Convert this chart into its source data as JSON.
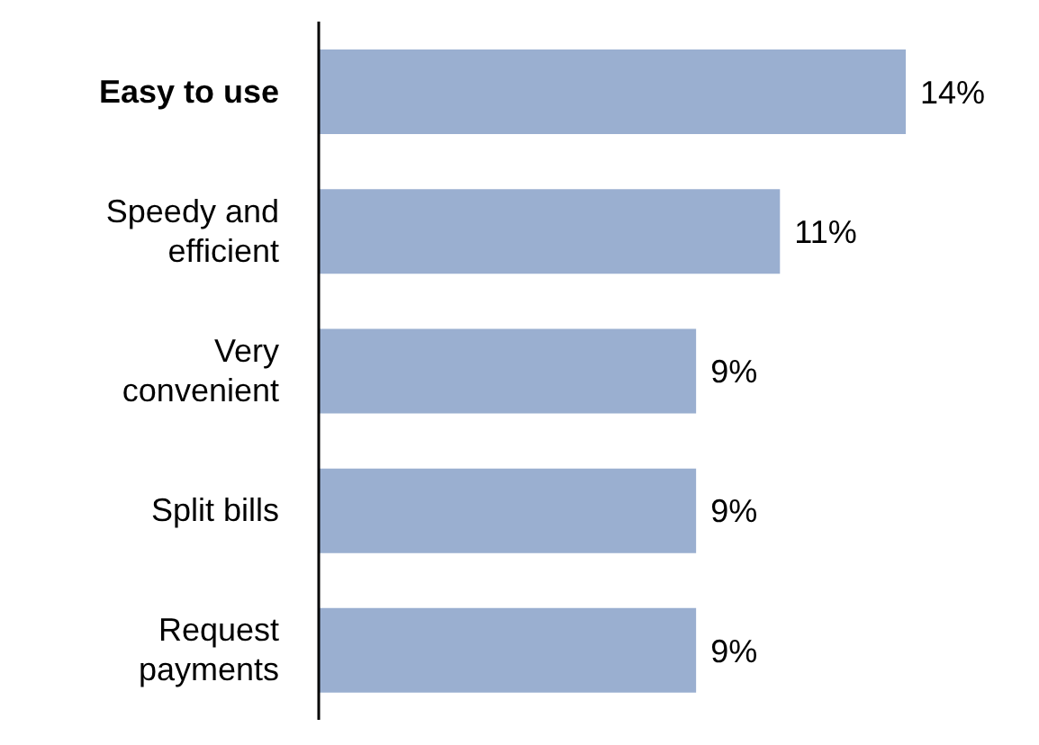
{
  "chart_data": {
    "type": "bar",
    "orientation": "horizontal",
    "categories": [
      "Easy to use",
      "Speedy and efficient",
      "Very convenient",
      "Split bills",
      "Request payments"
    ],
    "values": [
      14,
      11,
      9,
      9,
      9
    ],
    "value_labels": [
      "14%",
      "11%",
      "9%",
      "9%",
      "9%"
    ],
    "color": "#9aafd0"
  }
}
